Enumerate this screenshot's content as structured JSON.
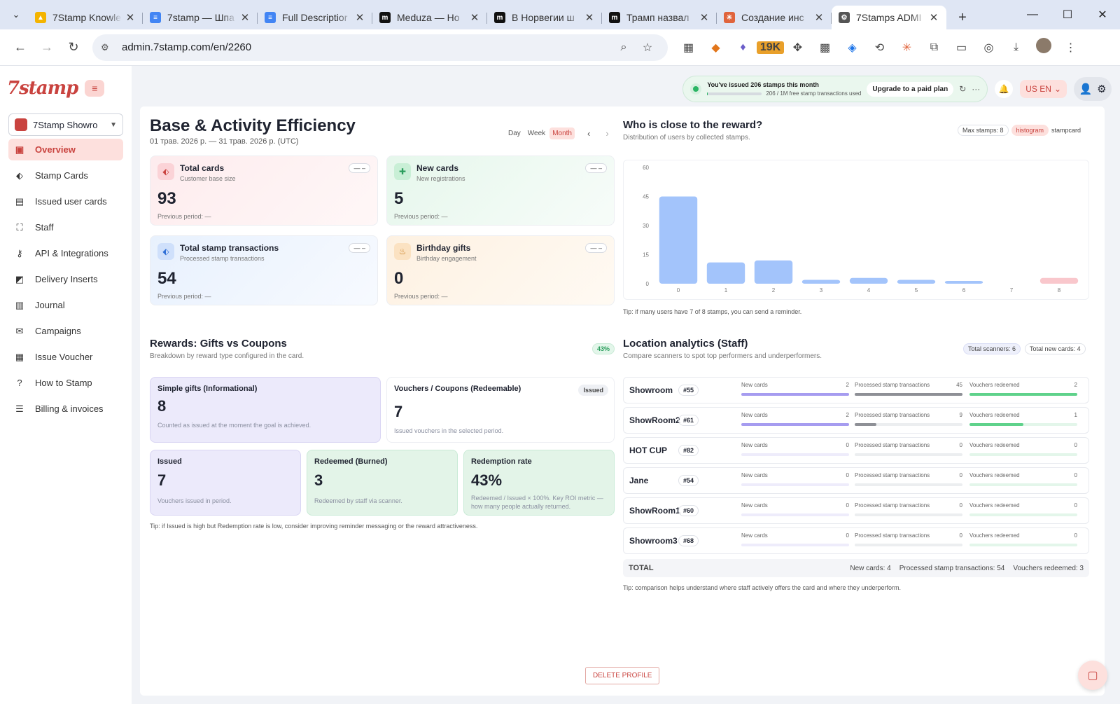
{
  "browser": {
    "tabs": [
      {
        "title": "7Stamp Knowle",
        "color": "#f4b400",
        "glyph": "▲"
      },
      {
        "title": "7stamp — Шпа",
        "color": "#4285f4",
        "glyph": "≡"
      },
      {
        "title": "Full Descriptior",
        "color": "#4285f4",
        "glyph": "≡"
      },
      {
        "title": "Meduza — Ho",
        "color": "#111111",
        "glyph": "m"
      },
      {
        "title": "В Норвегии ш",
        "color": "#111111",
        "glyph": "m"
      },
      {
        "title": "Трамп назвал",
        "color": "#111111",
        "glyph": "m"
      },
      {
        "title": "Создание инс",
        "color": "#e0643c",
        "glyph": "✳"
      },
      {
        "title": "7Stamps ADMI",
        "color": "#555555",
        "glyph": "⚙"
      }
    ],
    "url": "admin.7stamp.com/en/2260",
    "ext_badge": "19K"
  },
  "app": {
    "logo": "7stamp",
    "shop": "7Stamp Showro",
    "nav": [
      {
        "label": "Overview",
        "icon": "briefcase-icon",
        "glyph": "▣",
        "active": true
      },
      {
        "label": "Stamp Cards",
        "icon": "tag-icon",
        "glyph": "⬖"
      },
      {
        "label": "Issued user cards",
        "icon": "id-card-icon",
        "glyph": "▤"
      },
      {
        "label": "Staff",
        "icon": "scanner-icon",
        "glyph": "⛶"
      },
      {
        "label": "API & Integrations",
        "icon": "key-icon",
        "glyph": "⚷"
      },
      {
        "label": "Delivery Inserts",
        "icon": "inserts-icon",
        "glyph": "◩"
      },
      {
        "label": "Journal",
        "icon": "journal-icon",
        "glyph": "▥"
      },
      {
        "label": "Campaigns",
        "icon": "mail-icon",
        "glyph": "✉"
      },
      {
        "label": "Issue Voucher",
        "icon": "voucher-icon",
        "glyph": "▦"
      },
      {
        "label": "How to Stamp",
        "icon": "help-icon",
        "glyph": "?"
      },
      {
        "label": "Billing & invoices",
        "icon": "billing-icon",
        "glyph": "☰"
      }
    ],
    "quota": {
      "text": "You've issued 206 stamps this month",
      "used": "206 / 1M free stamp transactions used",
      "upgrade": "Upgrade to a paid plan",
      "fraction": 0.01
    },
    "lang": "US EN"
  },
  "efficiency": {
    "title": "Base & Activity Efficiency",
    "range": "01 трав. 2026 р. — 31 трав. 2026 р. (UTC)",
    "periods": [
      "Day",
      "Week",
      "Month"
    ],
    "active_period": "Month",
    "cards": [
      {
        "title": "Total cards",
        "sub": "Customer base size",
        "value": "93",
        "prev": "Previous period: —",
        "dd": "— –"
      },
      {
        "title": "New cards",
        "sub": "New registrations",
        "value": "5",
        "prev": "Previous period: —",
        "dd": "— –"
      },
      {
        "title": "Total stamp transactions",
        "sub": "Processed stamp transactions",
        "value": "54",
        "prev": "Previous period: —",
        "dd": "— –"
      },
      {
        "title": "Birthday gifts",
        "sub": "Birthday engagement",
        "value": "0",
        "prev": "Previous period: —",
        "dd": "— –"
      }
    ]
  },
  "reward": {
    "title": "Who is close to the reward?",
    "sub": "Distribution of users by collected stamps.",
    "max_stamps": "Max stamps: 8",
    "views": [
      "histogram",
      "stampcard"
    ],
    "tip": "Tip: if many users have 7 of 8 stamps, you can send a reminder."
  },
  "chart_data": {
    "type": "bar",
    "categories": [
      "0",
      "1",
      "2",
      "3",
      "4",
      "5",
      "6",
      "7",
      "8"
    ],
    "values": [
      45,
      11,
      12,
      2,
      3,
      2,
      1,
      0,
      3
    ],
    "ylim": [
      0,
      60
    ],
    "yticks": [
      "0",
      "15",
      "30",
      "45",
      "60"
    ],
    "colors": {
      "default": "#a3c4fb",
      "highlight": "#f9c7cc"
    },
    "highlight_index": 8,
    "grid": false
  },
  "rewards": {
    "title": "Rewards: Gifts vs Coupons",
    "sub": "Breakdown by reward type configured in the card.",
    "pct": "43%",
    "simple": {
      "title": "Simple gifts (Informational)",
      "value": "8",
      "sub": "Counted as issued at the moment the goal is achieved."
    },
    "vouchers": {
      "title": "Vouchers / Coupons (Redeemable)",
      "value": "7",
      "sub": "Issued vouchers in the selected period.",
      "badge": "Issued"
    },
    "issued": {
      "title": "Issued",
      "value": "7",
      "sub": "Vouchers issued in period."
    },
    "redeemed": {
      "title": "Redeemed (Burned)",
      "value": "3",
      "sub": "Redeemed by staff via scanner."
    },
    "rate": {
      "title": "Redemption rate",
      "value": "43%",
      "sub": "Redeemed / Issued × 100%. Key ROI metric — how many people actually returned."
    },
    "tip": "Tip: if Issued is high but Redemption rate is low, consider improving reminder messaging or the reward attractiveness."
  },
  "location": {
    "title": "Location analytics (Staff)",
    "sub": "Compare scanners to spot top performers and underperformers.",
    "total_scanners": "Total scanners: 6",
    "total_new": "Total new cards: 4",
    "labels": {
      "new": "New cards",
      "proc": "Processed stamp transactions",
      "vouch": "Vouchers redeemed"
    },
    "rows": [
      {
        "name": "Showroom",
        "id": "#55",
        "new": "2",
        "proc": "45",
        "vouch": "2",
        "newf": 1.0,
        "procf": 1.0,
        "vouchf": 1.0
      },
      {
        "name": "ShowRoom2",
        "id": "#61",
        "new": "2",
        "proc": "9",
        "vouch": "1",
        "newf": 1.0,
        "procf": 0.2,
        "vouchf": 0.5
      },
      {
        "name": "HOT CUP",
        "id": "#82",
        "new": "0",
        "proc": "0",
        "vouch": "0",
        "newf": 0,
        "procf": 0,
        "vouchf": 0
      },
      {
        "name": "Jane",
        "id": "#54",
        "new": "0",
        "proc": "0",
        "vouch": "0",
        "newf": 0,
        "procf": 0,
        "vouchf": 0
      },
      {
        "name": "ShowRoom1",
        "id": "#60",
        "new": "0",
        "proc": "0",
        "vouch": "0",
        "newf": 0,
        "procf": 0,
        "vouchf": 0
      },
      {
        "name": "Showroom3",
        "id": "#68",
        "new": "0",
        "proc": "0",
        "vouch": "0",
        "newf": 0,
        "procf": 0,
        "vouchf": 0
      }
    ],
    "total": {
      "label": "TOTAL",
      "new": "New cards: 4",
      "proc": "Processed stamp transactions: 54",
      "vouch": "Vouchers redeemed: 3"
    },
    "tip": "Tip: comparison helps understand where staff actively offers the card and where they underperform."
  },
  "delete": "DELETE PROFILE"
}
